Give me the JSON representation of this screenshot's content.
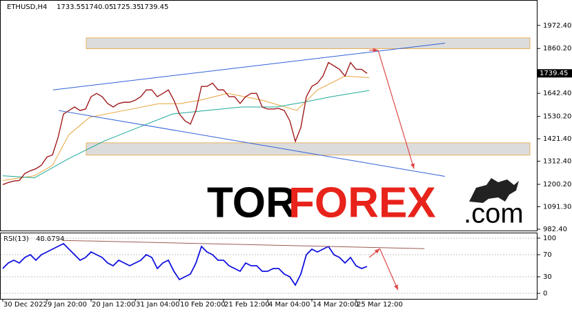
{
  "chart_data": [
    {
      "type": "line",
      "header": {
        "symbol": "ETHUSD,H4",
        "open": 1733.55,
        "high": 1740.05,
        "low": 1725.35,
        "close": 1739.45
      },
      "ylim": [
        975.7,
        2092.4
      ],
      "yticks": [
        {
          "value": 1972.4,
          "label": "1972.40"
        },
        {
          "value": 1860.2,
          "label": "1860.20"
        },
        {
          "value": 1642.4,
          "label": "1642.40"
        },
        {
          "value": 1530.2,
          "label": "1530.20"
        },
        {
          "value": 1421.4,
          "label": "1421.40"
        },
        {
          "value": 1312.4,
          "label": "1312.40"
        },
        {
          "value": 1200.2,
          "label": "1200.20"
        },
        {
          "value": 1091.3,
          "label": "1091.30"
        },
        {
          "value": 982.4,
          "label": "982.40"
        }
      ],
      "series": [
        {
          "color": "#a0191b",
          "values": [
            1199,
            1209,
            1216,
            1219,
            1253,
            1266,
            1276,
            1293,
            1333,
            1343,
            1426,
            1542,
            1559,
            1576,
            1559,
            1566,
            1626,
            1642,
            1626,
            1593,
            1576,
            1593,
            1599,
            1599,
            1609,
            1626,
            1659,
            1659,
            1626,
            1642,
            1659,
            1609,
            1542,
            1509,
            1493,
            1559,
            1676,
            1676,
            1692,
            1659,
            1659,
            1626,
            1626,
            1593,
            1626,
            1642,
            1642,
            1576,
            1566,
            1566,
            1569,
            1559,
            1509,
            1409,
            1476,
            1626,
            1676,
            1692,
            1726,
            1792,
            1776,
            1759,
            1726,
            1792,
            1759,
            1759,
            1739.45
          ]
        }
      ],
      "overlays": [
        {
          "color": "#e8a33a",
          "x": [
            0,
            5.75,
            9,
            12,
            15.75,
            22,
            28.25,
            32,
            35.75,
            40.75,
            47,
            53.25,
            57,
            62,
            66.4
          ],
          "values": [
            1219,
            1242,
            1292,
            1442,
            1526,
            1559,
            1592,
            1592,
            1609,
            1642,
            1609,
            1559,
            1659,
            1726,
            1719
          ]
        },
        {
          "color": "#1aa89a",
          "x": [
            0,
            5.75,
            12,
            18.25,
            24.5,
            30.75,
            37,
            43.25,
            49.5,
            54.5,
            59.5,
            66.4
          ],
          "values": [
            1242,
            1232,
            1326,
            1409,
            1476,
            1542,
            1559,
            1576,
            1576,
            1599,
            1626,
            1656
          ]
        }
      ],
      "zones": [
        [
          1859,
          1912
        ],
        [
          1342,
          1402
        ]
      ],
      "trendlines": [
        {
          "color": "#2f5fd8",
          "x": [
            9.1,
            80.1
          ],
          "y": [
            1659,
            1886
          ]
        },
        {
          "color": "#2f5fd8",
          "x": [
            10.1,
            80.1
          ],
          "y": [
            1559,
            1239
          ]
        }
      ],
      "arrows": [
        {
          "color": "#e04848",
          "x": [
            66.4,
            68
          ],
          "y": [
            1852,
            1852
          ]
        },
        {
          "color": "#e04848",
          "x": [
            68,
            74.5
          ],
          "y": [
            1852,
            1276
          ]
        }
      ]
    },
    {
      "type": "line",
      "title": "RSI(13)",
      "ylim": [
        -8.75,
        108.75
      ],
      "yticks": [
        100,
        70,
        30,
        0
      ],
      "categories": [
        "30 Dec 2022",
        null,
        null,
        null,
        null,
        null,
        null,
        null,
        "9 Jan 20:00",
        null,
        null,
        null,
        null,
        null,
        null,
        null,
        "20 Jan 12:00",
        null,
        null,
        null,
        null,
        null,
        null,
        null,
        "31 Jan 04:00",
        null,
        null,
        null,
        null,
        null,
        null,
        null,
        "10 Feb 20:00",
        null,
        null,
        null,
        null,
        null,
        null,
        null,
        "21 Feb 12:00",
        null,
        null,
        null,
        null,
        null,
        null,
        null,
        "4 Mar 04:00",
        null,
        null,
        null,
        null,
        null,
        null,
        null,
        "14 Mar 20:00",
        null,
        null,
        null,
        null,
        null,
        null,
        null,
        "25 Mar 12:00",
        null,
        null
      ],
      "series": [
        {
          "color": "#1010e0",
          "values": [
            45,
            55,
            60,
            55,
            65,
            70,
            60,
            70,
            75,
            80,
            85,
            90,
            80,
            70,
            60,
            65,
            75,
            70,
            65,
            55,
            50,
            60,
            55,
            50,
            55,
            60,
            70,
            65,
            45,
            55,
            60,
            40,
            25,
            30,
            35,
            55,
            85,
            75,
            70,
            60,
            60,
            50,
            45,
            40,
            55,
            50,
            50,
            40,
            40,
            45,
            45,
            35,
            30,
            15,
            35,
            70,
            80,
            75,
            80,
            85,
            70,
            65,
            55,
            65,
            50,
            45,
            48.6794
          ]
        }
      ],
      "trendlines": [
        {
          "color": "#9a5a50",
          "x": [
            10.75,
            76.4
          ],
          "y": [
            96,
            81
          ]
        }
      ],
      "arrows": [
        {
          "color": "#e04848",
          "x": [
            66.4,
            68.3
          ],
          "y": [
            65,
            81
          ]
        },
        {
          "color": "#e04848",
          "x": [
            68.3,
            71.6
          ],
          "y": [
            81,
            6
          ]
        }
      ]
    }
  ],
  "watermark": {
    "part1": "TOR",
    "part2": "FOREX",
    "part3": ".com"
  }
}
